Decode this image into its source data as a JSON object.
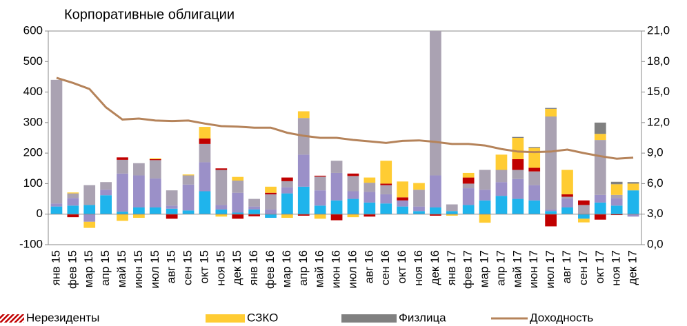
{
  "chart_data": {
    "type": "bar",
    "title": "Корпоративные облигации",
    "categories": [
      "янв 15",
      "фев 15",
      "мар 15",
      "апр 15",
      "май 15",
      "июн 15",
      "июл 15",
      "авг 15",
      "сен 15",
      "окт 15",
      "ноя 15",
      "дек 15",
      "янв 16",
      "фев 16",
      "мар 16",
      "апр 16",
      "май 16",
      "июн 16",
      "июл 16",
      "авг 16",
      "сен 16",
      "окт 16",
      "ноя 16",
      "дек 16",
      "янв 17",
      "фев 17",
      "мар 17",
      "апр 17",
      "май 17",
      "июн 17",
      "июл 17",
      "авг 17",
      "сен 17",
      "окт 17",
      "ноя 17",
      "дек 17"
    ],
    "series": [
      {
        "color": "#1fb4ec",
        "values": [
          25,
          28,
          30,
          62,
          8,
          22,
          22,
          18,
          12,
          75,
          15,
          5,
          15,
          -12,
          68,
          90,
          28,
          45,
          50,
          38,
          35,
          25,
          10,
          22,
          10,
          30,
          45,
          60,
          50,
          45,
          10,
          22,
          -15,
          38,
          28,
          78
        ]
      },
      {
        "color": "#9b90c8",
        "values": [
          10,
          25,
          -25,
          18,
          125,
          105,
          95,
          10,
          85,
          95,
          15,
          65,
          10,
          15,
          20,
          105,
          50,
          90,
          25,
          35,
          30,
          20,
          15,
          105,
          0,
          55,
          35,
          45,
          65,
          50,
          5,
          30,
          0,
          25,
          25,
          -8
        ]
      },
      {
        "color": "#aaa2b2",
        "values": [
          405,
          15,
          65,
          25,
          45,
          40,
          60,
          50,
          30,
          60,
          115,
          40,
          25,
          50,
          20,
          120,
          45,
          40,
          50,
          30,
          30,
          0,
          55,
          520,
          22,
          15,
          65,
          40,
          30,
          45,
          305,
          5,
          30,
          180,
          10,
          0
        ]
      },
      {
        "name": "Нерезиденты",
        "color": "#c00000",
        "values": [
          0,
          -10,
          0,
          0,
          8,
          0,
          3,
          -15,
          0,
          18,
          5,
          -15,
          -7,
          5,
          12,
          -5,
          3,
          -20,
          8,
          -8,
          5,
          10,
          0,
          -5,
          0,
          20,
          0,
          0,
          35,
          12,
          -40,
          8,
          15,
          -18,
          -3,
          0
        ]
      },
      {
        "name": "СЗКО",
        "color": "#ffcc33",
        "values": [
          0,
          3,
          -20,
          0,
          -22,
          -12,
          3,
          0,
          3,
          38,
          -8,
          12,
          0,
          20,
          -12,
          22,
          -15,
          0,
          -10,
          17,
          75,
          52,
          22,
          0,
          -5,
          15,
          -28,
          50,
          70,
          65,
          25,
          80,
          -12,
          20,
          35,
          22
        ]
      },
      {
        "name": "Физлица",
        "color": "#808080",
        "values": [
          0,
          0,
          0,
          0,
          0,
          0,
          0,
          0,
          0,
          0,
          0,
          0,
          0,
          0,
          0,
          0,
          0,
          0,
          0,
          0,
          0,
          0,
          0,
          0,
          0,
          0,
          0,
          0,
          3,
          3,
          3,
          0,
          0,
          37,
          8,
          5
        ]
      },
      {
        "name": "Доходность",
        "type": "line",
        "axis": "y2",
        "color": "#b5835a",
        "values": [
          16.4,
          15.9,
          15.3,
          13.5,
          12.3,
          12.4,
          12.2,
          12.15,
          12.2,
          11.9,
          11.65,
          11.6,
          11.5,
          11.5,
          11.0,
          10.7,
          10.5,
          10.5,
          10.3,
          10.15,
          10.0,
          10.2,
          10.25,
          10.1,
          9.9,
          9.9,
          9.75,
          9.4,
          9.15,
          9.1,
          9.15,
          9.35,
          9.0,
          8.7,
          8.45,
          8.55
        ]
      }
    ],
    "ylim": [
      -100,
      600
    ],
    "yticks": [
      -100,
      0,
      100,
      200,
      300,
      400,
      500,
      600
    ],
    "y2lim": [
      0,
      21
    ],
    "y2ticks": [
      {
        "value": 0,
        "label": "0,0"
      },
      {
        "value": 3,
        "label": "3,0"
      },
      {
        "value": 6,
        "label": "6,0"
      },
      {
        "value": 9,
        "label": "9,0"
      },
      {
        "value": 12,
        "label": "12,0"
      },
      {
        "value": 15,
        "label": "15,0"
      },
      {
        "value": 18,
        "label": "18,0"
      },
      {
        "value": 21,
        "label": "21,0"
      }
    ],
    "legend": "bottom"
  }
}
